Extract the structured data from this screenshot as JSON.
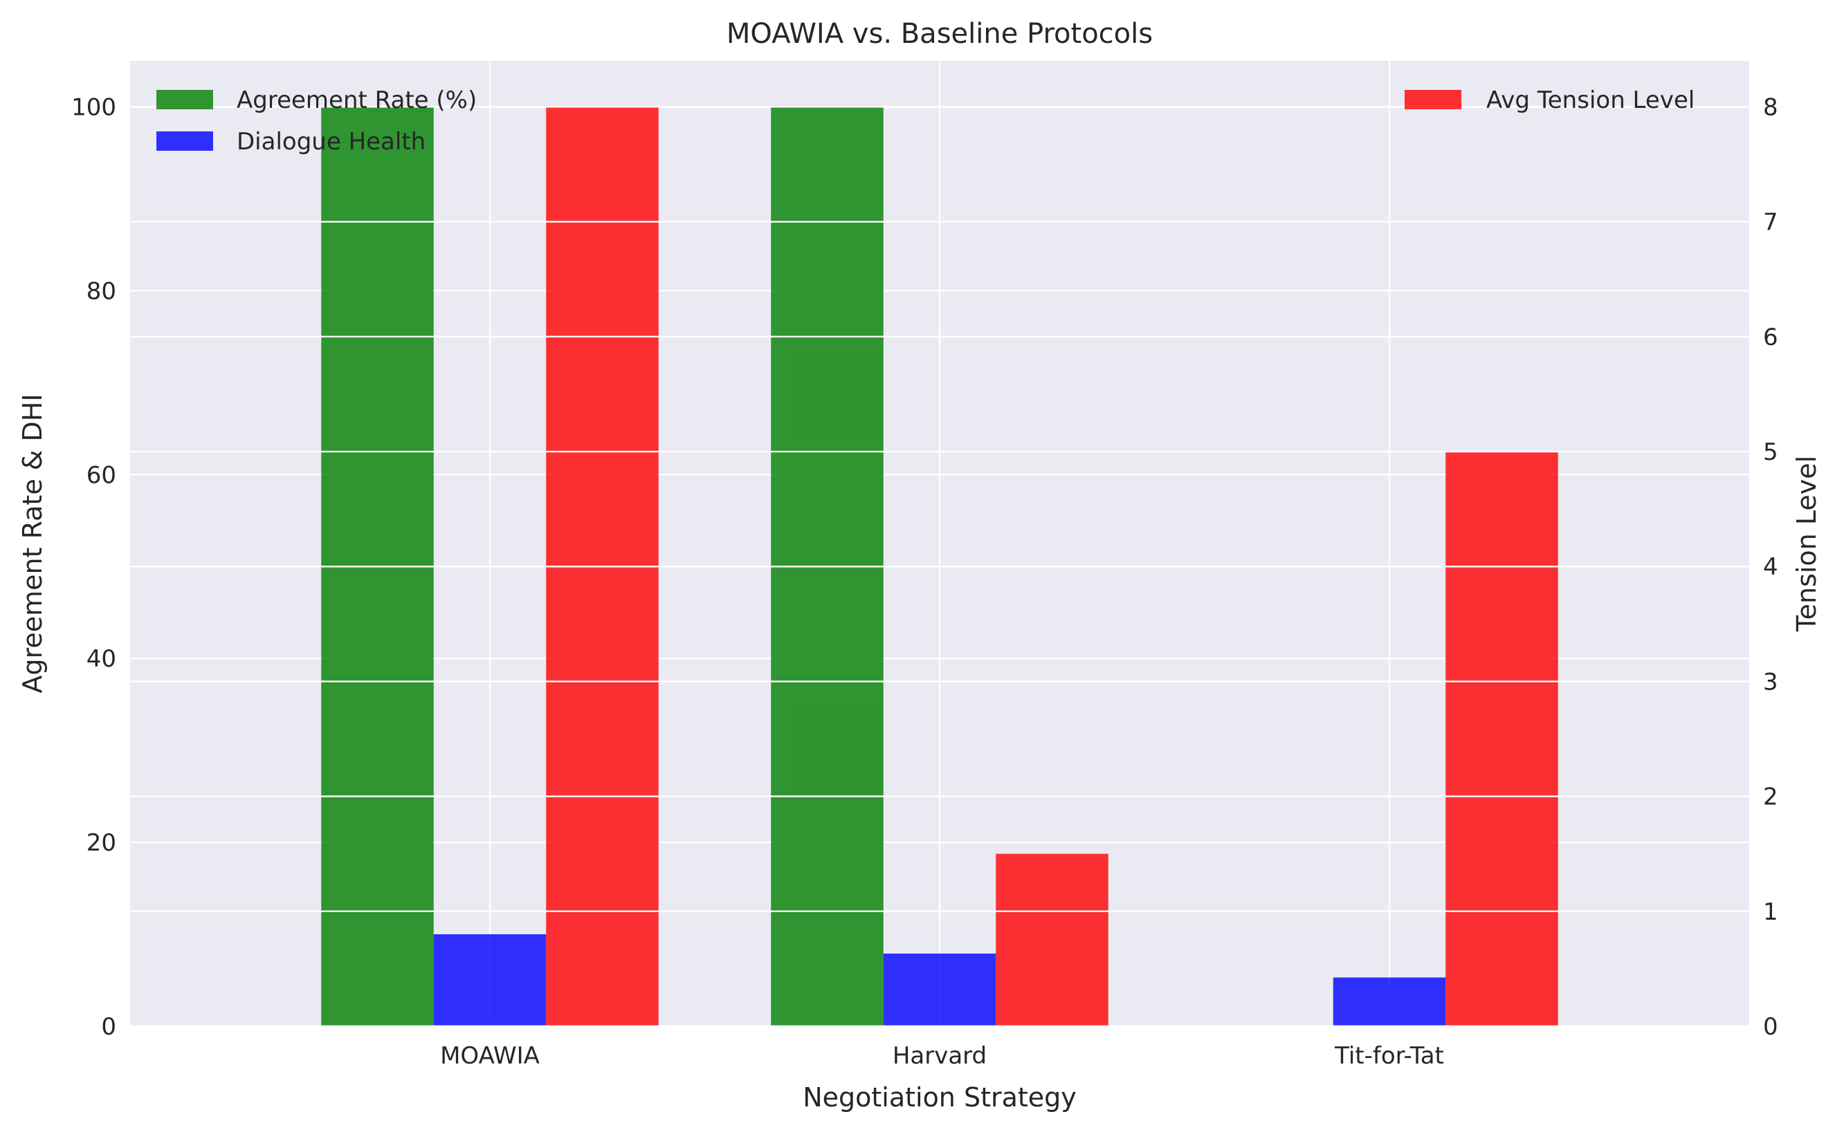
{
  "chart_data": {
    "type": "bar",
    "title": "MOAWIA vs. Baseline Protocols",
    "xlabel": "Negotiation Strategy",
    "ylabel": "Agreement Rate & DHI",
    "y2label": "Tension Level",
    "categories": [
      "MOAWIA",
      "Harvard",
      "Tit-for-Tat"
    ],
    "ylim": [
      0,
      105
    ],
    "y2lim": [
      0,
      8.4
    ],
    "yticks": [
      "0",
      "20",
      "40",
      "60",
      "80",
      "100"
    ],
    "y2ticks": [
      "0",
      "1",
      "2",
      "3",
      "4",
      "5",
      "6",
      "7",
      "8"
    ],
    "series": [
      {
        "name": "Agreement Rate (%)",
        "axis": "left",
        "color": "#007f00",
        "values": [
          100,
          100,
          0
        ]
      },
      {
        "name": "Dialogue Health",
        "axis": "left",
        "color": "#0000ff",
        "values": [
          10,
          7.9,
          5.3
        ]
      },
      {
        "name": "Avg Tension Level",
        "axis": "right",
        "color": "#ff0000",
        "values": [
          8,
          1.5,
          5
        ]
      }
    ],
    "legend_left": "upper-left",
    "legend_right": "upper-right",
    "grid": true,
    "background": "#eaeaf2"
  }
}
